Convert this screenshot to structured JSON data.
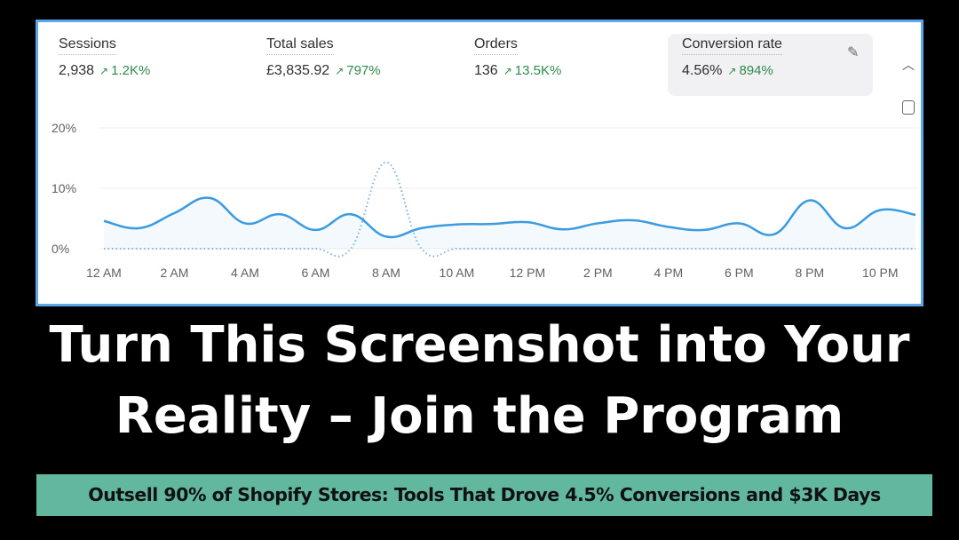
{
  "metrics": [
    {
      "label": "Sessions",
      "value": "2,938",
      "change": "1.2K%"
    },
    {
      "label": "Total sales",
      "value": "£3,835.92",
      "change": "797%"
    },
    {
      "label": "Orders",
      "value": "136",
      "change": "13.5K%"
    },
    {
      "label": "Conversion rate",
      "value": "4.56%",
      "change": "894%",
      "selected": true
    }
  ],
  "icons": {
    "edit": "pencil-icon",
    "collapse": "chevron-up-icon",
    "view": "report-search-icon",
    "trend": "arrow-up-right-icon"
  },
  "colors": {
    "line": "#3a9be0",
    "positive": "#2e8a4e",
    "border": "#5aa7ea",
    "banner": "#62b89e"
  },
  "chart_data": {
    "type": "line",
    "y_ticks": [
      "0%",
      "10%",
      "20%"
    ],
    "ylim": [
      0,
      20
    ],
    "x_ticks": [
      "12 AM",
      "2 AM",
      "4 AM",
      "6 AM",
      "8 AM",
      "10 AM",
      "12 PM",
      "2 PM",
      "4 PM",
      "6 PM",
      "8 PM",
      "10 PM"
    ],
    "x_hours": [
      0,
      1,
      2,
      3,
      4,
      5,
      6,
      7,
      8,
      9,
      10,
      11,
      12,
      13,
      14,
      15,
      16,
      17,
      18,
      19,
      20,
      21,
      22,
      23
    ],
    "series": [
      {
        "style": "solid",
        "values": [
          4.6,
          3.4,
          5.9,
          8.4,
          4.2,
          5.7,
          3.1,
          5.7,
          2.0,
          3.4,
          4.0,
          4.1,
          4.4,
          3.2,
          4.2,
          4.7,
          3.6,
          3.1,
          4.2,
          2.4,
          8.0,
          3.4,
          6.4,
          5.6
        ]
      },
      {
        "style": "dotted",
        "values": [
          0,
          0,
          0,
          0,
          0,
          0,
          0,
          0,
          14.3,
          0,
          0,
          0,
          0,
          0,
          0,
          0,
          0,
          0,
          0,
          0,
          0,
          0,
          0,
          0
        ]
      }
    ],
    "grid": true
  },
  "headline": {
    "line1": "Turn This Screenshot into Your",
    "line2": "Reality – Join the Program"
  },
  "banner": "Outsell 90% of Shopify Stores: Tools That Drove 4.5% Conversions and $3K Days"
}
